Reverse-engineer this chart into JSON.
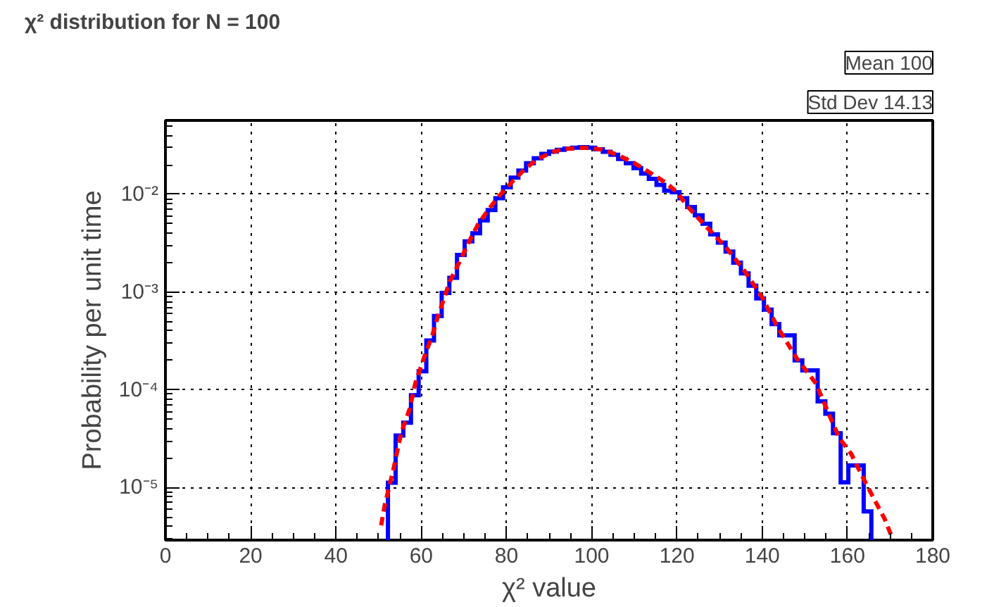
{
  "chart_data": {
    "type": "histogram",
    "title": "χ² distribution for N = 100",
    "xlabel": "χ² value",
    "ylabel": "Probability per unit time",
    "annotations": [
      "Mean 100",
      "Std Dev 14.13"
    ],
    "series": [
      {
        "type": "histogram",
        "color": "#0000ff",
        "bins": [
          52.2,
          54,
          55.8,
          57.6,
          59.4,
          61.2,
          63,
          64.8,
          66.6,
          68.4,
          70.2,
          72,
          73.8,
          75.6,
          77.4,
          79.2,
          81,
          82.8,
          84.6,
          86.4,
          88.2,
          90,
          91.8,
          93.6,
          95.4,
          97.2,
          99,
          100.8,
          102.6,
          104.4,
          106.2,
          108,
          109.8,
          111.6,
          113.4,
          115.2,
          117,
          118.8,
          120.6,
          122.4,
          124.2,
          126,
          127.8,
          129.6,
          131.4,
          133.2,
          135,
          136.8,
          138.6,
          140.4,
          142.2,
          144,
          145.8,
          147.6,
          149.4,
          151.2,
          153,
          154.8,
          156.6,
          158.4,
          160.2,
          162,
          163.8,
          165.6
        ],
        "values": [
          1.12e-05,
          3.4e-05,
          4.6e-05,
          8.8e-05,
          0.000155,
          0.00032,
          0.00057,
          0.00098,
          0.0014,
          0.0024,
          0.0033,
          0.004,
          0.0054,
          0.0069,
          0.0091,
          0.0118,
          0.0148,
          0.0175,
          0.0208,
          0.0234,
          0.0259,
          0.0274,
          0.0285,
          0.0294,
          0.03,
          0.0303,
          0.03,
          0.0289,
          0.0272,
          0.0254,
          0.023,
          0.0208,
          0.0185,
          0.0163,
          0.0144,
          0.0125,
          0.0109,
          0.0105,
          0.0091,
          0.0074,
          0.0061,
          0.005,
          0.0039,
          0.0032,
          0.0026,
          0.002,
          0.00155,
          0.00116,
          0.00086,
          0.00066,
          0.00047,
          0.00036,
          0.00036,
          0.0002,
          0.000158,
          0.000158,
          7.6e-05,
          5.7e-05,
          3.6e-05,
          1.13e-05,
          1.68e-05,
          1.68e-05,
          5.7e-06
        ]
      },
      {
        "type": "line",
        "color": "#ff0000",
        "line_style": "dashed",
        "x": [
          50.6,
          51.5,
          53.4,
          55.3,
          57.3,
          58.6,
          60.6,
          62.6,
          63.9,
          66.7,
          68.9,
          71.1,
          73.3,
          75.6,
          77.8,
          80,
          82,
          84,
          86,
          88,
          90,
          92,
          94,
          96,
          98,
          100,
          102,
          104,
          106,
          108,
          110,
          112,
          114,
          116,
          118,
          120,
          122.6,
          127,
          131.4,
          135.9,
          139.8,
          143.7,
          148.1,
          152.6,
          155.9,
          158.1,
          160.9,
          163.1,
          166.4,
          168.7,
          170.3
        ],
        "values": [
          4.1e-06,
          6.8e-06,
          1.48e-05,
          3.6e-05,
          6.4e-05,
          0.000116,
          0.00021,
          0.00036,
          0.00056,
          0.00128,
          0.002,
          0.0032,
          0.0049,
          0.0068,
          0.0091,
          0.0116,
          0.0144,
          0.0175,
          0.0208,
          0.0237,
          0.0261,
          0.028,
          0.0291,
          0.0296,
          0.03,
          0.0296,
          0.0288,
          0.0272,
          0.0254,
          0.023,
          0.0208,
          0.0185,
          0.0163,
          0.0144,
          0.0125,
          0.0105,
          0.0074,
          0.0046,
          0.0029,
          0.00163,
          0.00091,
          0.00043,
          0.00021,
          0.000116,
          5.3e-05,
          3.2e-05,
          2.2e-05,
          1.4e-05,
          7.4e-06,
          4.8e-06,
          3.2e-06
        ]
      }
    ],
    "xlim": [
      0,
      180
    ],
    "xticks": [
      0,
      20,
      40,
      60,
      80,
      100,
      120,
      140,
      160,
      180
    ],
    "ylim": [
      2.9e-06,
      0.057
    ],
    "yticks": [
      {
        "value": 1e-05,
        "label": "10⁻⁵"
      },
      {
        "value": 0.0001,
        "label": "10⁻⁴"
      },
      {
        "value": 0.001,
        "label": "10⁻³"
      },
      {
        "value": 0.01,
        "label": "10⁻²"
      }
    ],
    "log": true,
    "grid": true,
    "legend": false,
    "marker": "none"
  }
}
